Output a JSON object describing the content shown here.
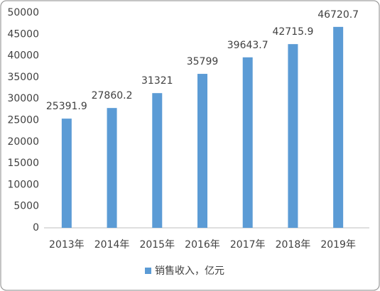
{
  "chart_data": {
    "type": "bar",
    "categories": [
      "2013年",
      "2014年",
      "2015年",
      "2016年",
      "2017年",
      "2018年",
      "2019年"
    ],
    "series": [
      {
        "name": "销售收入，亿元",
        "color": "#5b9bd5",
        "values": [
          25391.9,
          27860.2,
          31321,
          35799,
          39643.7,
          42715.9,
          46720.7
        ]
      }
    ],
    "ylim": [
      0,
      50000
    ],
    "yticks": [
      0,
      5000,
      10000,
      15000,
      20000,
      25000,
      30000,
      35000,
      40000,
      45000,
      50000
    ],
    "grid": false,
    "legend": "bottom",
    "data_labels": true
  }
}
